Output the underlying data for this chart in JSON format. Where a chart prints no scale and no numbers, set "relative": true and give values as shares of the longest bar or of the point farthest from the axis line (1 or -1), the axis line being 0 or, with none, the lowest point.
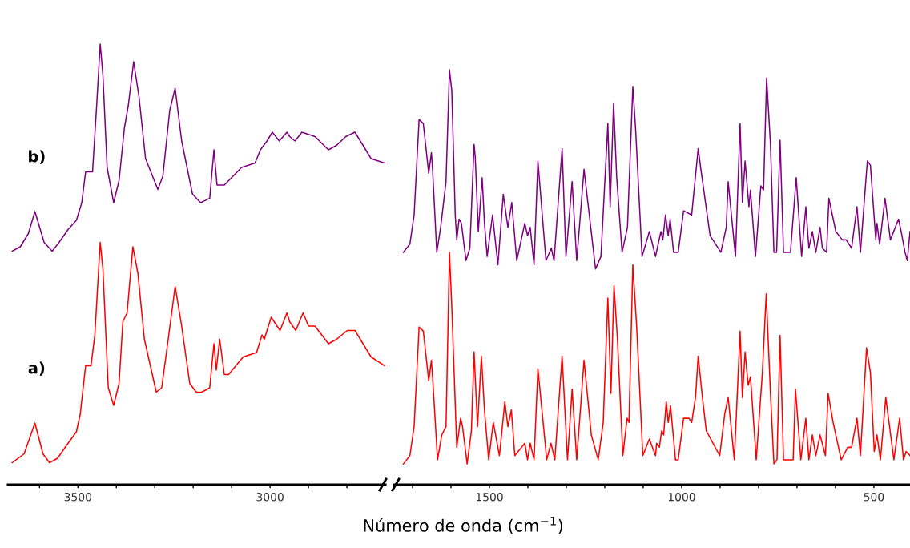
{
  "chart_data": [
    {
      "type": "line",
      "relative": true,
      "xlabel": "Número de onda (cm$^{−1}$)",
      "legend": false,
      "grid": false,
      "xlim": [
        3682,
        2700
      ],
      "xticks": [
        {
          "value": 3600,
          "label": null
        },
        3500,
        {
          "value": 3400,
          "label": null
        },
        {
          "value": 3300,
          "label": null
        },
        {
          "value": 3200,
          "label": null
        },
        {
          "value": 3100,
          "label": null
        },
        3000,
        {
          "value": 2900,
          "label": null
        },
        {
          "value": 2800,
          "label": null
        }
      ],
      "series": [
        {
          "name": "a)",
          "color": "#ff0000",
          "x": [
            3671,
            3640,
            3612,
            3591,
            3574,
            3553,
            3529,
            3504,
            3494,
            3480,
            3466,
            3456,
            3442,
            3435,
            3421,
            3407,
            3393,
            3383,
            3372,
            3357,
            3344,
            3327,
            3296,
            3282,
            3265,
            3247,
            3230,
            3209,
            3192,
            3178,
            3157,
            3146,
            3140,
            3131,
            3119,
            3108,
            3070,
            3035,
            3021,
            3015,
            2997,
            2974,
            2956,
            2949,
            2933,
            2914,
            2900,
            2883,
            2848,
            2827,
            2799,
            2779,
            2737,
            2702
          ],
          "values": [
            0.05,
            0.07,
            0.14,
            0.07,
            0.05,
            0.06,
            0.09,
            0.12,
            0.16,
            0.27,
            0.27,
            0.34,
            0.55,
            0.49,
            0.22,
            0.18,
            0.23,
            0.37,
            0.39,
            0.54,
            0.48,
            0.33,
            0.21,
            0.22,
            0.33,
            0.45,
            0.36,
            0.23,
            0.21,
            0.21,
            0.22,
            0.32,
            0.26,
            0.33,
            0.25,
            0.25,
            0.29,
            0.3,
            0.34,
            0.33,
            0.38,
            0.35,
            0.39,
            0.37,
            0.35,
            0.39,
            0.36,
            0.36,
            0.32,
            0.33,
            0.35,
            0.35,
            0.29,
            0.27
          ]
        },
        {
          "name": "b)",
          "color": "#800080",
          "x": [
            3671,
            3650,
            3629,
            3612,
            3588,
            3567,
            3549,
            3525,
            3504,
            3490,
            3480,
            3462,
            3452,
            3442,
            3435,
            3424,
            3407,
            3393,
            3379,
            3369,
            3355,
            3341,
            3324,
            3292,
            3279,
            3261,
            3247,
            3230,
            3202,
            3181,
            3157,
            3146,
            3138,
            3119,
            3074,
            3039,
            3025,
            3008,
            2994,
            2976,
            2956,
            2949,
            2935,
            2917,
            2883,
            2848,
            2827,
            2803,
            2779,
            2737,
            2702
          ],
          "values": [
            0.53,
            0.54,
            0.57,
            0.62,
            0.55,
            0.53,
            0.55,
            0.58,
            0.6,
            0.64,
            0.71,
            0.71,
            0.85,
            1.0,
            0.93,
            0.72,
            0.64,
            0.69,
            0.81,
            0.86,
            0.96,
            0.88,
            0.74,
            0.67,
            0.7,
            0.85,
            0.9,
            0.78,
            0.66,
            0.64,
            0.65,
            0.76,
            0.68,
            0.68,
            0.72,
            0.73,
            0.76,
            0.78,
            0.8,
            0.78,
            0.8,
            0.79,
            0.78,
            0.8,
            0.79,
            0.76,
            0.77,
            0.79,
            0.8,
            0.74,
            0.73
          ]
        }
      ]
    },
    {
      "type": "line",
      "relative": true,
      "legend": false,
      "grid": false,
      "xlim": [
        1748,
        406
      ],
      "xticks": [
        {
          "value": 1700,
          "label": null
        },
        {
          "value": 1600,
          "label": null
        },
        1500,
        {
          "value": 1400,
          "label": null
        },
        {
          "value": 1300,
          "label": null
        },
        {
          "value": 1200,
          "label": null
        },
        {
          "value": 1100,
          "label": null
        },
        1000,
        {
          "value": 900,
          "label": null
        },
        {
          "value": 800,
          "label": null
        },
        {
          "value": 700,
          "label": null
        },
        {
          "value": 600,
          "label": null
        },
        500
      ],
      "series": [
        {
          "color": "#ff0000",
          "x": [
            1724,
            1707,
            1696,
            1683,
            1672,
            1665,
            1658,
            1651,
            1648,
            1635,
            1624,
            1613,
            1604,
            1598,
            1585,
            1575,
            1570,
            1558,
            1547,
            1540,
            1531,
            1521,
            1513,
            1502,
            1490,
            1474,
            1460,
            1452,
            1443,
            1434,
            1408,
            1401,
            1394,
            1384,
            1374,
            1351,
            1340,
            1330,
            1311,
            1297,
            1285,
            1273,
            1254,
            1235,
            1217,
            1204,
            1192,
            1184,
            1176,
            1167,
            1153,
            1142,
            1137,
            1127,
            1117,
            1101,
            1084,
            1068,
            1065,
            1058,
            1052,
            1047,
            1040,
            1035,
            1029,
            1016,
            1009,
            995,
            981,
            974,
            964,
            957,
            946,
            936,
            901,
            888,
            879,
            863,
            848,
            842,
            835,
            827,
            821,
            806,
            790,
            780,
            769,
            760,
            752,
            744,
            735,
            710,
            704,
            690,
            677,
            669,
            660,
            651,
            640,
            626,
            619,
            606,
            585,
            568,
            558,
            544,
            535,
            519,
            509,
            499,
            492,
            483,
            469,
            448,
            433,
            423,
            416,
            406
          ],
          "values": [
            0.05,
            0.07,
            0.14,
            0.38,
            0.37,
            0.31,
            0.25,
            0.3,
            0.26,
            0.06,
            0.12,
            0.14,
            0.56,
            0.43,
            0.09,
            0.16,
            0.14,
            0.05,
            0.13,
            0.32,
            0.14,
            0.31,
            0.18,
            0.06,
            0.15,
            0.07,
            0.2,
            0.14,
            0.18,
            0.07,
            0.1,
            0.06,
            0.1,
            0.06,
            0.28,
            0.06,
            0.1,
            0.06,
            0.31,
            0.06,
            0.23,
            0.06,
            0.3,
            0.12,
            0.06,
            0.15,
            0.45,
            0.22,
            0.48,
            0.35,
            0.07,
            0.16,
            0.15,
            0.53,
            0.38,
            0.07,
            0.11,
            0.07,
            0.1,
            0.09,
            0.13,
            0.12,
            0.2,
            0.15,
            0.19,
            0.06,
            0.06,
            0.16,
            0.16,
            0.15,
            0.21,
            0.31,
            0.21,
            0.13,
            0.07,
            0.17,
            0.21,
            0.06,
            0.37,
            0.21,
            0.32,
            0.24,
            0.26,
            0.06,
            0.27,
            0.46,
            0.22,
            0.05,
            0.06,
            0.36,
            0.06,
            0.06,
            0.23,
            0.06,
            0.16,
            0.06,
            0.12,
            0.07,
            0.12,
            0.07,
            0.22,
            0.15,
            0.06,
            0.09,
            0.09,
            0.16,
            0.07,
            0.33,
            0.27,
            0.08,
            0.12,
            0.06,
            0.21,
            0.06,
            0.16,
            0.06,
            0.08,
            0.07
          ]
        },
        {
          "color": "#800080",
          "x": [
            1724,
            1707,
            1696,
            1683,
            1672,
            1665,
            1658,
            1651,
            1648,
            1637,
            1627,
            1613,
            1604,
            1598,
            1589,
            1585,
            1579,
            1573,
            1561,
            1551,
            1540,
            1537,
            1529,
            1519,
            1513,
            1506,
            1492,
            1478,
            1464,
            1452,
            1442,
            1429,
            1408,
            1401,
            1394,
            1384,
            1374,
            1353,
            1339,
            1332,
            1311,
            1301,
            1285,
            1273,
            1254,
            1224,
            1210,
            1192,
            1186,
            1177,
            1169,
            1155,
            1141,
            1127,
            1120,
            1103,
            1084,
            1068,
            1054,
            1049,
            1042,
            1035,
            1030,
            1021,
            1009,
            995,
            974,
            957,
            950,
            926,
            898,
            884,
            879,
            860,
            848,
            842,
            835,
            825,
            821,
            808,
            794,
            787,
            779,
            769,
            760,
            753,
            744,
            735,
            717,
            702,
            688,
            677,
            669,
            660,
            651,
            640,
            634,
            623,
            617,
            599,
            582,
            572,
            558,
            544,
            535,
            517,
            509,
            495,
            492,
            485,
            471,
            457,
            436,
            429,
            419,
            413,
            406
          ],
          "values": [
            0.56,
            0.58,
            0.65,
            0.88,
            0.87,
            0.81,
            0.75,
            0.8,
            0.76,
            0.56,
            0.62,
            0.73,
            1.0,
            0.95,
            0.65,
            0.59,
            0.64,
            0.63,
            0.54,
            0.57,
            0.82,
            0.79,
            0.61,
            0.74,
            0.63,
            0.55,
            0.65,
            0.53,
            0.7,
            0.62,
            0.68,
            0.54,
            0.63,
            0.6,
            0.62,
            0.53,
            0.78,
            0.54,
            0.57,
            0.54,
            0.81,
            0.55,
            0.73,
            0.54,
            0.76,
            0.52,
            0.55,
            0.87,
            0.67,
            0.92,
            0.74,
            0.56,
            0.62,
            0.96,
            0.86,
            0.55,
            0.61,
            0.55,
            0.61,
            0.59,
            0.65,
            0.6,
            0.64,
            0.56,
            0.56,
            0.66,
            0.65,
            0.81,
            0.76,
            0.6,
            0.56,
            0.62,
            0.73,
            0.55,
            0.87,
            0.68,
            0.78,
            0.67,
            0.71,
            0.55,
            0.72,
            0.71,
            0.98,
            0.82,
            0.56,
            0.56,
            0.83,
            0.56,
            0.56,
            0.74,
            0.55,
            0.67,
            0.57,
            0.61,
            0.56,
            0.62,
            0.57,
            0.56,
            0.69,
            0.61,
            0.59,
            0.59,
            0.57,
            0.67,
            0.56,
            0.78,
            0.77,
            0.59,
            0.63,
            0.58,
            0.69,
            0.59,
            0.64,
            0.61,
            0.56,
            0.54,
            0.61
          ]
        }
      ]
    }
  ]
}
